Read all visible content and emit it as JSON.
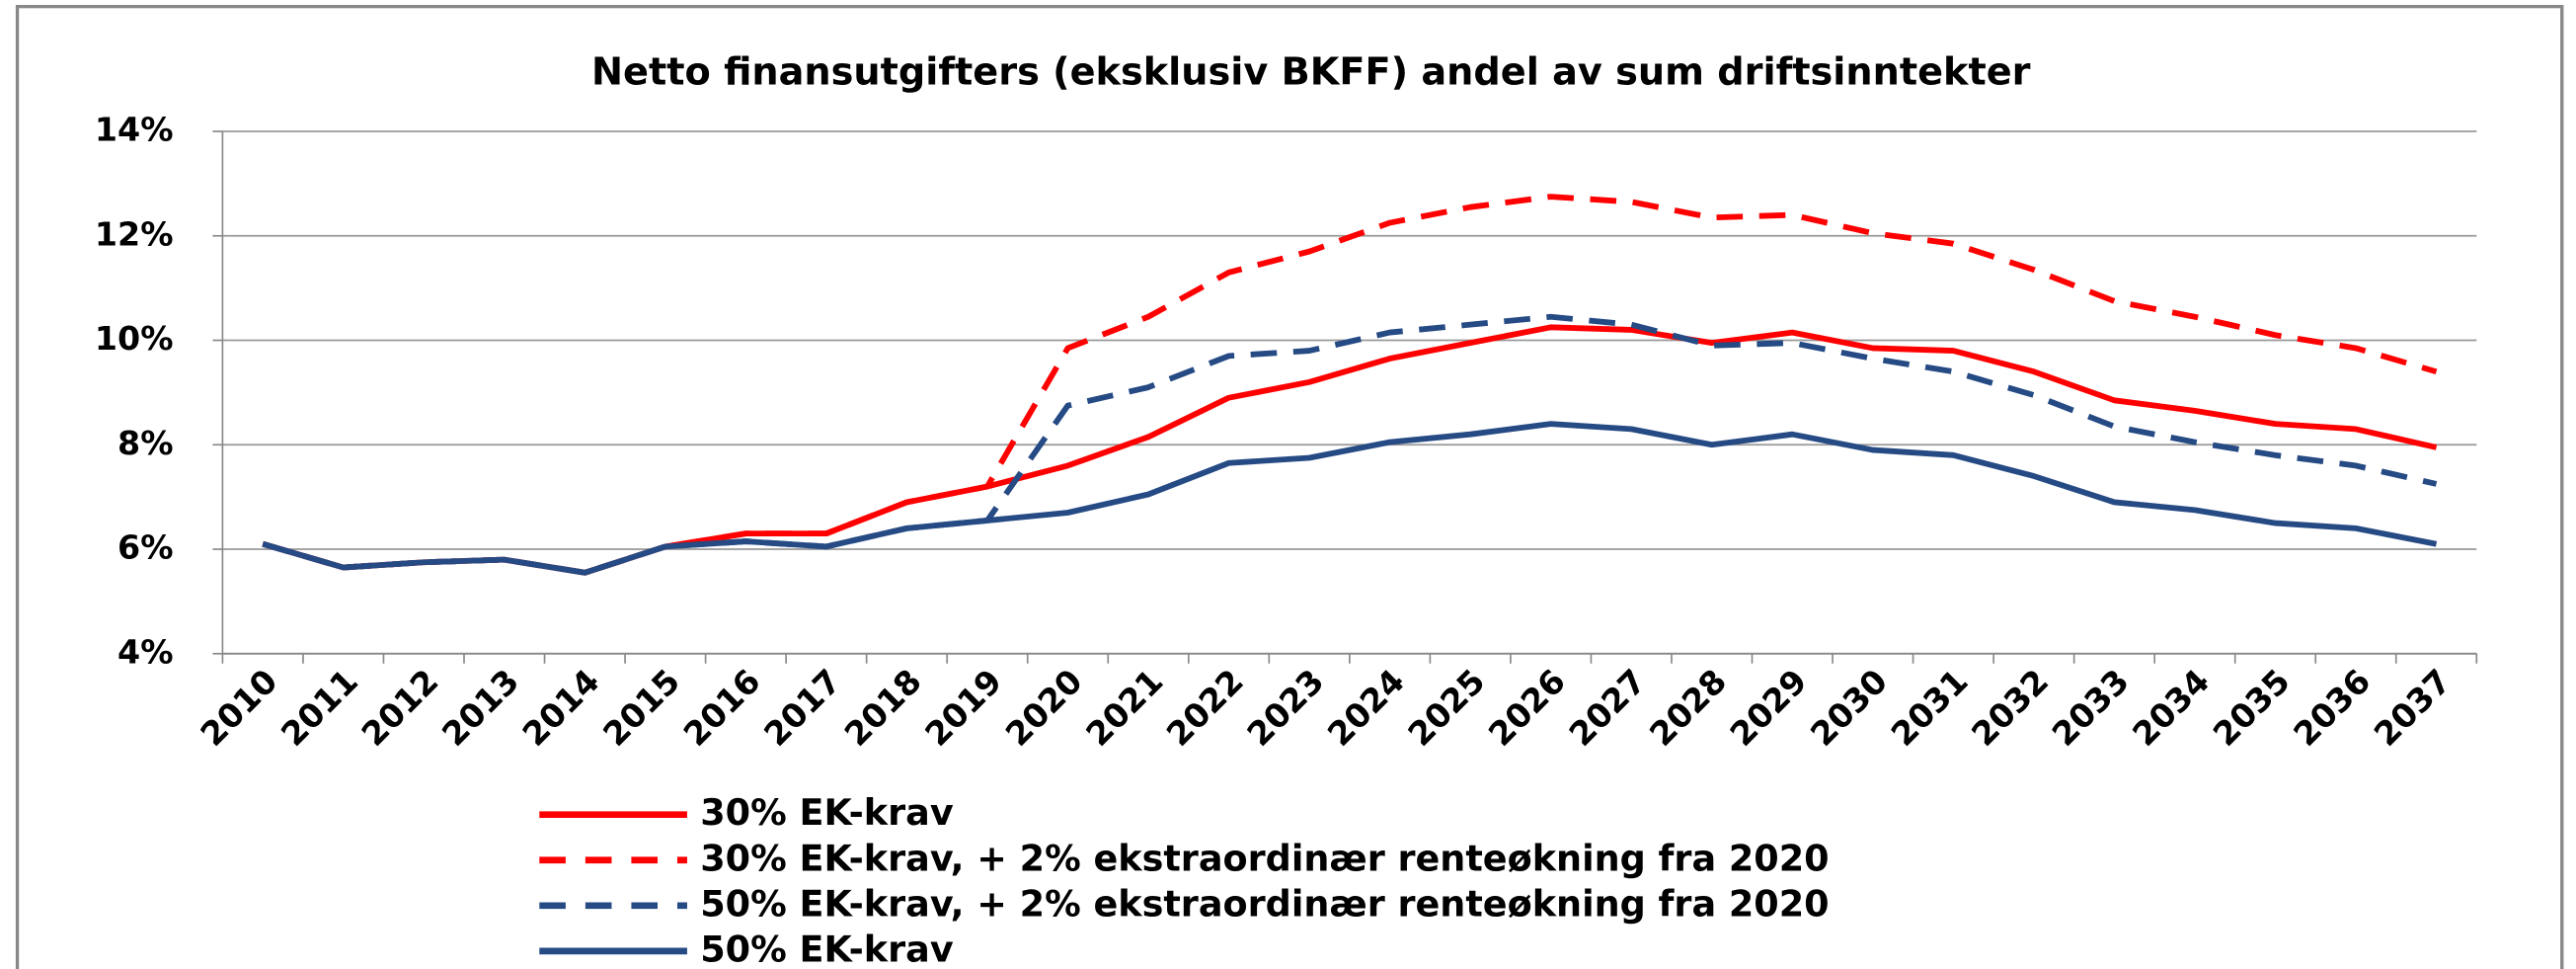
{
  "chart_data": {
    "type": "line",
    "title": "Netto finansutgifters (eksklusiv BKFF) andel av sum driftsinntekter",
    "categories": [
      "2010",
      "2011",
      "2012",
      "2013",
      "2014",
      "2015",
      "2016",
      "2017",
      "2018",
      "2019",
      "2020",
      "2021",
      "2022",
      "2023",
      "2024",
      "2025",
      "2026",
      "2027",
      "2028",
      "2029",
      "2030",
      "2031",
      "2032",
      "2033",
      "2034",
      "2035",
      "2036",
      "2037"
    ],
    "ylim": [
      4,
      14
    ],
    "yticks": [
      {
        "value": 4,
        "label": "4%"
      },
      {
        "value": 6,
        "label": "6%"
      },
      {
        "value": 8,
        "label": "8%"
      },
      {
        "value": 10,
        "label": "10%"
      },
      {
        "value": 12,
        "label": "12%"
      },
      {
        "value": 14,
        "label": "14%"
      }
    ],
    "grid": true,
    "series": [
      {
        "name": "30% EK-krav",
        "color": "#ff0000",
        "dashed": false,
        "values": [
          6.1,
          5.65,
          5.75,
          5.8,
          5.55,
          6.05,
          6.3,
          6.3,
          6.9,
          7.2,
          7.6,
          8.15,
          8.9,
          9.2,
          9.65,
          9.95,
          10.25,
          10.2,
          9.95,
          10.15,
          9.85,
          9.8,
          9.4,
          8.85,
          8.65,
          8.4,
          8.3,
          7.95
        ]
      },
      {
        "name": "30% EK-krav,  + 2% ekstraordinær renteøkning fra 2020",
        "color": "#ff0000",
        "dashed": true,
        "values": [
          6.1,
          5.65,
          5.75,
          5.8,
          5.55,
          6.05,
          6.3,
          6.3,
          6.9,
          7.2,
          9.85,
          10.45,
          11.3,
          11.7,
          12.25,
          12.55,
          12.75,
          12.65,
          12.35,
          12.4,
          12.05,
          11.85,
          11.35,
          10.75,
          10.45,
          10.1,
          9.85,
          9.4
        ]
      },
      {
        "name": "50% EK-krav,  + 2% ekstraordinær renteøkning fra 2020",
        "color": "#254a84",
        "dashed": true,
        "values": [
          6.1,
          5.65,
          5.75,
          5.8,
          5.55,
          6.05,
          6.15,
          6.05,
          6.4,
          6.55,
          8.75,
          9.1,
          9.7,
          9.8,
          10.15,
          10.3,
          10.45,
          10.3,
          9.9,
          9.95,
          9.65,
          9.4,
          8.95,
          8.35,
          8.05,
          7.8,
          7.6,
          7.25
        ]
      },
      {
        "name": "50% EK-krav",
        "color": "#254a84",
        "dashed": false,
        "values": [
          6.1,
          5.65,
          5.75,
          5.8,
          5.55,
          6.05,
          6.15,
          6.05,
          6.4,
          6.55,
          6.7,
          7.05,
          7.65,
          7.75,
          8.05,
          8.2,
          8.4,
          8.3,
          8.0,
          8.2,
          7.9,
          7.8,
          7.4,
          6.9,
          6.75,
          6.5,
          6.4,
          6.1
        ]
      }
    ]
  }
}
